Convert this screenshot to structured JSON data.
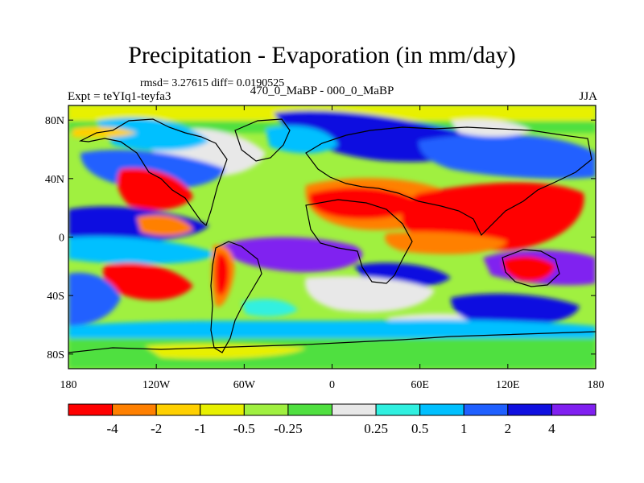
{
  "title": "Precipitation - Evaporation (in mm/day)",
  "stats": "rmsd= 3.27615 diff= 0.0190525",
  "left_label": "Expt = teYIq1-teyfa3",
  "center_label": "470_0_MaBP - 000_0_MaBP",
  "right_label": "JJA",
  "lat_ticks": [
    "80N",
    "40N",
    "0",
    "40S",
    "80S"
  ],
  "lon_ticks": [
    "180",
    "120W",
    "60W",
    "0",
    "60E",
    "120E",
    "180"
  ],
  "colorbar": {
    "colors": [
      "#ff0000",
      "#ff8000",
      "#ffd000",
      "#e8f000",
      "#a0f040",
      "#50e040",
      "#e8e8e8",
      "#30f0e0",
      "#00c0ff",
      "#2060ff",
      "#1010e0",
      "#8020f0"
    ],
    "labels": [
      "-4",
      "-2",
      "-1",
      "-0.5",
      "-0.25",
      "0.25",
      "0.5",
      "1",
      "2",
      "4"
    ]
  },
  "colors": {
    "red": "#ff0000",
    "orange": "#ff8000",
    "yellow": "#ffd000",
    "yellowgreen": "#e8f000",
    "lightgreen": "#a0f040",
    "green": "#50e040",
    "white": "#e8e8e8",
    "cyan": "#30f0e0",
    "lightblue": "#00c0ff",
    "blue": "#2060ff",
    "darkblue": "#1010e0",
    "purple": "#8020f0"
  }
}
